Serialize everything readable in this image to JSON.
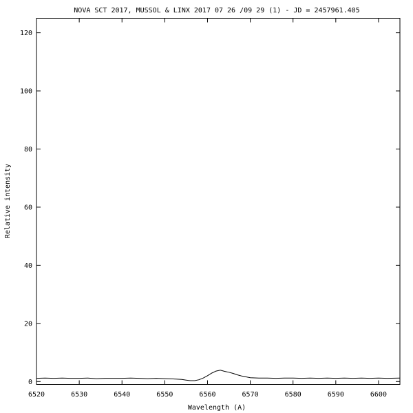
{
  "chart_data": {
    "type": "line",
    "title": "NOVA SCT 2017,  MUSSOL & LINX  2017 07 26 /09 29 (1) - JD = 2457961.405",
    "xlabel": "Wavelength (A)",
    "ylabel": "Relative intensity",
    "xlim": [
      6520,
      6605
    ],
    "ylim": [
      -1,
      125
    ],
    "xticks": [
      6520,
      6530,
      6540,
      6550,
      6560,
      6570,
      6580,
      6590,
      6600
    ],
    "yticks": [
      0,
      20,
      40,
      60,
      80,
      100,
      120
    ],
    "grid": false,
    "legend": "none",
    "line_color": "#000000",
    "series": [
      {
        "x": [
          6520,
          6522,
          6524,
          6526,
          6528,
          6530,
          6532,
          6534,
          6536,
          6538,
          6540,
          6542,
          6544,
          6546,
          6548,
          6550,
          6552,
          6554,
          6555,
          6556,
          6557,
          6558,
          6559,
          6560,
          6561,
          6562,
          6563,
          6564,
          6565,
          6566,
          6567,
          6568,
          6569,
          6570,
          6572,
          6574,
          6576,
          6578,
          6580,
          6582,
          6584,
          6586,
          6588,
          6590,
          6592,
          6594,
          6596,
          6598,
          6600,
          6602,
          6605
        ],
        "y": [
          1.1,
          1.2,
          1.1,
          1.2,
          1.1,
          1.1,
          1.2,
          1.0,
          1.1,
          1.1,
          1.1,
          1.2,
          1.1,
          1.0,
          1.1,
          1.0,
          0.9,
          0.7,
          0.5,
          0.3,
          0.3,
          0.6,
          1.2,
          2.0,
          2.9,
          3.6,
          3.9,
          3.5,
          3.2,
          2.8,
          2.3,
          1.9,
          1.6,
          1.3,
          1.2,
          1.2,
          1.1,
          1.2,
          1.2,
          1.1,
          1.2,
          1.1,
          1.2,
          1.1,
          1.2,
          1.1,
          1.2,
          1.1,
          1.2,
          1.1,
          1.2
        ]
      }
    ]
  }
}
